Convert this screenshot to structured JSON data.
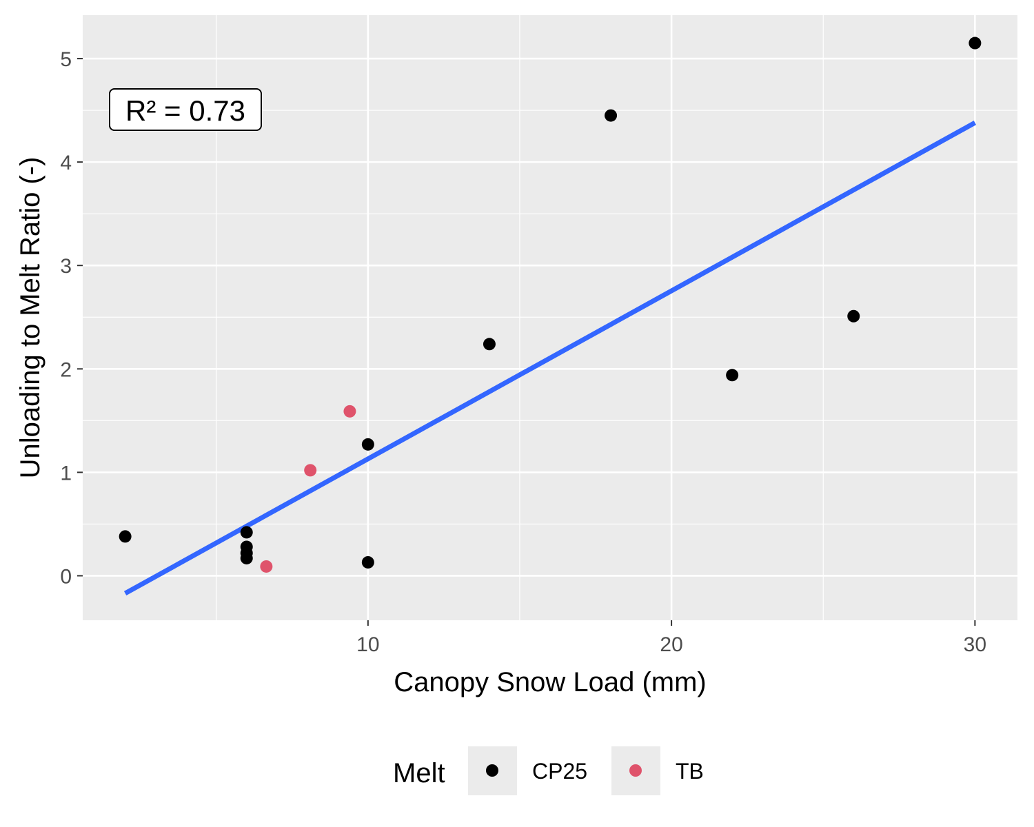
{
  "chart_data": {
    "type": "scatter",
    "xlabel": "Canopy Snow Load (mm)",
    "ylabel": "Unloading to Melt Ratio (-)",
    "xlim": [
      0.6,
      31.4
    ],
    "ylim": [
      -0.43,
      5.42
    ],
    "x_ticks": [
      10,
      20,
      30
    ],
    "x_tick_labels": [
      "10",
      "20",
      "30"
    ],
    "y_ticks": [
      0,
      1,
      2,
      3,
      4,
      5
    ],
    "y_tick_labels": [
      "0",
      "1",
      "2",
      "3",
      "4",
      "5"
    ],
    "grid": true,
    "background_color": "#ebebeb",
    "annotation": {
      "text": "R² = 0.73",
      "x": 2.6,
      "y": 4.5
    },
    "series": [
      {
        "name": "CP25",
        "color": "#000000",
        "points": [
          {
            "x": 2.0,
            "y": 0.38
          },
          {
            "x": 6.0,
            "y": 0.42
          },
          {
            "x": 6.0,
            "y": 0.28
          },
          {
            "x": 6.0,
            "y": 0.22
          },
          {
            "x": 6.0,
            "y": 0.17
          },
          {
            "x": 10.0,
            "y": 1.27
          },
          {
            "x": 10.0,
            "y": 0.13
          },
          {
            "x": 14.0,
            "y": 2.24
          },
          {
            "x": 18.0,
            "y": 4.45
          },
          {
            "x": 22.0,
            "y": 1.94
          },
          {
            "x": 26.0,
            "y": 2.51
          },
          {
            "x": 30.0,
            "y": 5.15
          }
        ]
      },
      {
        "name": "TB",
        "color": "#df536b",
        "points": [
          {
            "x": 6.65,
            "y": 0.09
          },
          {
            "x": 8.1,
            "y": 1.02
          },
          {
            "x": 9.4,
            "y": 1.59
          }
        ]
      }
    ],
    "fit_line": {
      "color": "#3366ff",
      "x": [
        2.0,
        30.0
      ],
      "y": [
        -0.17,
        4.38
      ]
    },
    "legend": {
      "title": "Melt",
      "position": "bottom",
      "entries": [
        {
          "label": "CP25",
          "color": "#000000"
        },
        {
          "label": "TB",
          "color": "#df536b"
        }
      ]
    }
  }
}
